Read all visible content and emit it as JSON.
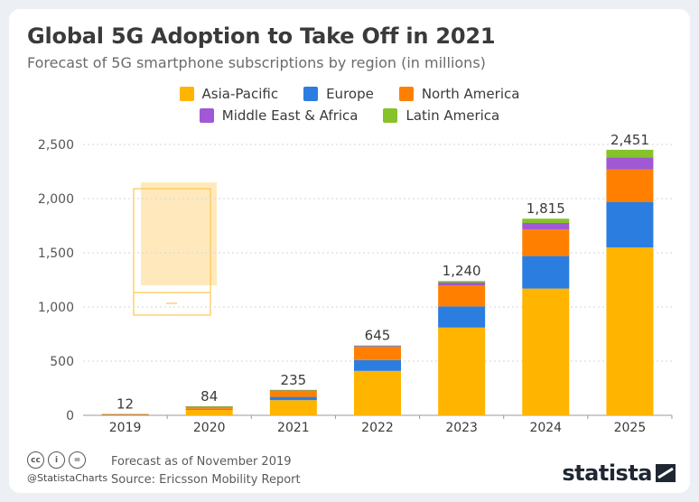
{
  "header": {
    "title": "Global 5G Adoption to Take Off in 2021",
    "subtitle": "Forecast of 5G smartphone subscriptions by region (in millions)"
  },
  "footer": {
    "handle": "@StatistaCharts",
    "note": "Forecast as of November 2019",
    "source": "Source: Ericsson Mobility Report",
    "brand": "statista",
    "license_icons": [
      "cc-icon",
      "by-icon",
      "nd-icon"
    ]
  },
  "chart_data": {
    "type": "bar",
    "stacked": true,
    "categories": [
      "2019",
      "2020",
      "2021",
      "2022",
      "2023",
      "2024",
      "2025"
    ],
    "totals": [
      "12",
      "84",
      "235",
      "645",
      "1,240",
      "1,815",
      "2,451"
    ],
    "series": [
      {
        "name": "Asia-Pacific",
        "color": "#ffb400",
        "values": [
          8,
          55,
          140,
          410,
          810,
          1170,
          1550
        ]
      },
      {
        "name": "Europe",
        "color": "#2b7de0",
        "values": [
          1,
          5,
          30,
          100,
          195,
          300,
          420
        ]
      },
      {
        "name": "North America",
        "color": "#ff8000",
        "values": [
          3,
          22,
          60,
          120,
          195,
          245,
          300
        ]
      },
      {
        "name": "Middle East & Africa",
        "color": "#a058d4",
        "values": [
          0,
          1,
          3,
          10,
          25,
          60,
          110
        ]
      },
      {
        "name": "Latin America",
        "color": "#86c22a",
        "values": [
          0,
          1,
          2,
          5,
          15,
          40,
          71
        ]
      }
    ],
    "yticks": [
      "0",
      "500",
      "1,000",
      "1,500",
      "2,000",
      "2,500"
    ],
    "ylim": [
      0,
      2500
    ],
    "grid": true,
    "legend_position": "top"
  }
}
